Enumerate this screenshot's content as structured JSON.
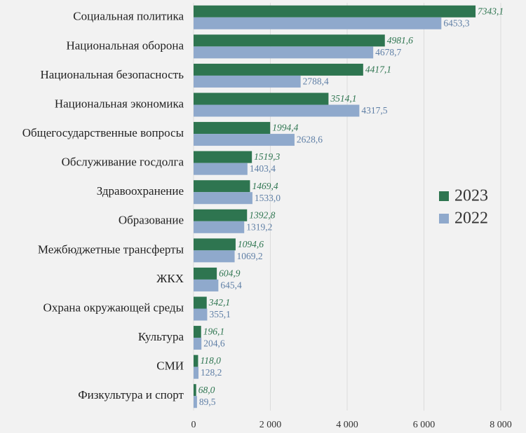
{
  "chart_data": {
    "type": "hbar",
    "categories": [
      "Социальная политика",
      "Национальная оборона",
      "Национальная безопасность",
      "Национальная экономика",
      "Общегосударственные вопросы",
      "Обслуживание госдолга",
      "Здравоохранение",
      "Образование",
      "Межбюджетные трансферты",
      "ЖКХ",
      "Охрана окружающей среды",
      "Культура",
      "СМИ",
      "Физкультура и спорт"
    ],
    "series": [
      {
        "name": "2023",
        "color": "#2e7550",
        "values": [
          7343.1,
          4981.6,
          4417.1,
          3514.1,
          1994.4,
          1519.3,
          1469.4,
          1392.8,
          1094.6,
          604.9,
          342.1,
          196.1,
          118.0,
          68.0
        ],
        "value_labels": [
          "7343,1",
          "4981,6",
          "4417,1",
          "3514,1",
          "1994,4",
          "1519,3",
          "1469,4",
          "1392,8",
          "1094,6",
          "604,9",
          "342,1",
          "196,1",
          "118,0",
          "68,0"
        ]
      },
      {
        "name": "2022",
        "color": "#8fa9cc",
        "values": [
          6453.3,
          4678.7,
          2788.4,
          4317.5,
          2628.6,
          1403.4,
          1533.0,
          1319.2,
          1069.2,
          645.4,
          355.1,
          204.6,
          128.2,
          89.5
        ],
        "value_labels": [
          "6453,3",
          "4678,7",
          "2788,4",
          "4317,5",
          "2628,6",
          "1403,4",
          "1533,0",
          "1319,2",
          "1069,2",
          "645,4",
          "355,1",
          "204,6",
          "128,2",
          "89,5"
        ]
      }
    ],
    "xlim": [
      0,
      8000
    ],
    "xticks": [
      0,
      {
        "value": 2000,
        "label": "2 000"
      },
      {
        "value": 4000,
        "label": "4 000"
      },
      {
        "value": 6000,
        "label": "6 000"
      },
      {
        "value": 8000,
        "label": "8 000"
      }
    ],
    "grid": true,
    "legend": "right"
  }
}
